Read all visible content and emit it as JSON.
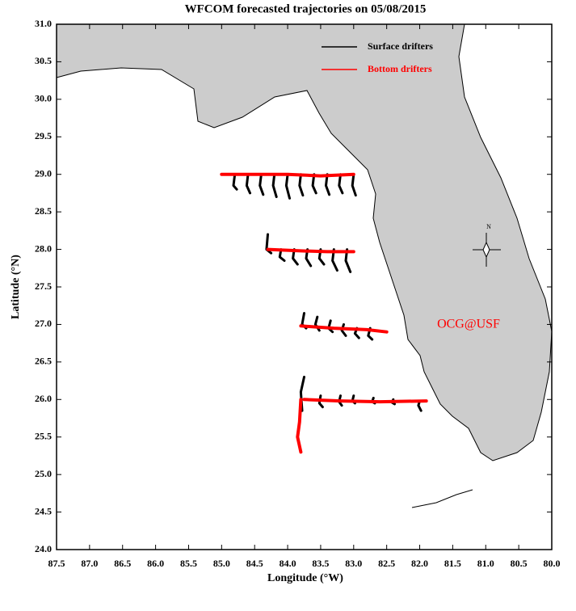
{
  "chart_data": {
    "type": "line",
    "title": "WFCOM forecasted trajectories on 05/08/2015",
    "x_label": "Longitude (°W)",
    "y_label": "Latitude (°N)",
    "xlim": [
      87.5,
      80.0
    ],
    "ylim": [
      24.0,
      31.0
    ],
    "xticks": [
      {
        "value": 87.5,
        "label": "87.5"
      },
      {
        "value": 87,
        "label": "87.0"
      },
      {
        "value": 86.5,
        "label": "86.5"
      },
      {
        "value": 86,
        "label": "86.0"
      },
      {
        "value": 85.5,
        "label": "85.5"
      },
      {
        "value": 85,
        "label": "85.0"
      },
      {
        "value": 84.5,
        "label": "84.5"
      },
      {
        "value": 84,
        "label": "84.0"
      },
      {
        "value": 83.5,
        "label": "83.5"
      },
      {
        "value": 83,
        "label": "83.0"
      },
      {
        "value": 82.5,
        "label": "82.5"
      },
      {
        "value": 82,
        "label": "82.0"
      },
      {
        "value": 81.5,
        "label": "81.5"
      },
      {
        "value": 81,
        "label": "81.0"
      },
      {
        "value": 80.5,
        "label": "80.5"
      },
      {
        "value": 80,
        "label": "80.0"
      }
    ],
    "yticks": [
      {
        "value": 24,
        "label": "24.0"
      },
      {
        "value": 24.5,
        "label": "24.5"
      },
      {
        "value": 25,
        "label": "25.0"
      },
      {
        "value": 25.5,
        "label": "25.5"
      },
      {
        "value": 26,
        "label": "26.0"
      },
      {
        "value": 26.5,
        "label": "26.5"
      },
      {
        "value": 27,
        "label": "27.0"
      },
      {
        "value": 27.5,
        "label": "27.5"
      },
      {
        "value": 28,
        "label": "28.0"
      },
      {
        "value": 28.5,
        "label": "28.5"
      },
      {
        "value": 29,
        "label": "29.0"
      },
      {
        "value": 29.5,
        "label": "29.5"
      },
      {
        "value": 30,
        "label": "30.0"
      },
      {
        "value": 30.5,
        "label": "30.5"
      },
      {
        "value": 31,
        "label": "31.0"
      }
    ],
    "legend": "top-right",
    "annotations": [
      "OCG@USF",
      "N"
    ],
    "series": [
      {
        "name": "Surface drifters",
        "color": "#000000",
        "width": 3,
        "x": [
          84.8,
          84.82,
          84.77,
          null,
          84.6,
          84.62,
          84.57,
          null,
          84.4,
          84.42,
          84.37,
          null,
          84.2,
          84.22,
          84.17,
          null,
          84.0,
          84.02,
          83.97,
          null,
          83.8,
          83.82,
          83.77,
          null,
          83.6,
          83.62,
          83.57,
          null,
          83.4,
          83.42,
          83.37,
          null,
          83.2,
          83.22,
          83.17,
          null,
          83.0,
          83.02,
          82.97,
          null,
          84.3,
          84.32,
          84.25,
          null,
          84.1,
          84.12,
          84.05,
          null,
          83.9,
          83.92,
          83.85,
          null,
          83.7,
          83.72,
          83.65,
          null,
          83.5,
          83.52,
          83.45,
          null,
          83.3,
          83.32,
          83.25,
          null,
          83.1,
          83.12,
          83.05,
          null,
          83.75,
          83.78,
          83.72,
          null,
          83.55,
          83.58,
          83.52,
          null,
          83.35,
          83.38,
          83.32,
          null,
          83.15,
          83.18,
          83.12,
          null,
          82.95,
          82.98,
          82.92,
          null,
          82.75,
          82.78,
          82.72,
          null,
          83.75,
          83.8,
          83.78,
          null,
          83.5,
          83.52,
          83.47,
          null,
          83.2,
          83.22,
          83.18,
          null,
          83.0,
          83.02,
          82.98,
          null,
          82.7,
          82.72,
          82.68,
          null,
          82.4,
          82.42,
          82.38,
          null,
          82.0,
          82.02,
          81.98
        ],
        "y": [
          29.0,
          28.85,
          28.8,
          null,
          29.0,
          28.85,
          28.75,
          null,
          29.0,
          28.85,
          28.73,
          null,
          29.0,
          28.85,
          28.7,
          null,
          29.0,
          28.85,
          28.68,
          null,
          29.0,
          28.85,
          28.72,
          null,
          29.0,
          28.85,
          28.75,
          null,
          29.0,
          28.85,
          28.73,
          null,
          29.0,
          28.85,
          28.75,
          null,
          29.0,
          28.85,
          28.72,
          null,
          28.2,
          28.0,
          27.95,
          null,
          28.0,
          27.9,
          27.85,
          null,
          28.0,
          27.88,
          27.8,
          null,
          28.0,
          27.88,
          27.78,
          null,
          28.0,
          27.88,
          27.8,
          null,
          28.0,
          27.85,
          27.72,
          null,
          28.0,
          27.85,
          27.7,
          null,
          27.15,
          27.0,
          26.95,
          null,
          27.1,
          27.0,
          26.92,
          null,
          27.05,
          26.95,
          26.9,
          null,
          27.0,
          26.92,
          26.85,
          null,
          26.95,
          26.88,
          26.82,
          null,
          26.95,
          26.85,
          26.8,
          null,
          26.3,
          26.1,
          25.85,
          null,
          26.05,
          25.95,
          25.9,
          null,
          26.05,
          25.97,
          25.92,
          null,
          26.05,
          25.98,
          25.95,
          null,
          26.02,
          25.97,
          25.95,
          null,
          26.0,
          25.96,
          25.94,
          null,
          25.98,
          25.92,
          25.85
        ]
      },
      {
        "name": "Bottom drifters",
        "color": "#ff0000",
        "width": 4,
        "x": [
          85.0,
          84.5,
          84.0,
          83.5,
          83.0,
          null,
          84.3,
          83.8,
          83.4,
          83.0,
          null,
          83.8,
          83.3,
          82.8,
          82.5,
          null,
          83.75,
          83.2,
          82.6,
          81.9,
          null,
          83.8,
          83.82,
          83.85,
          83.8
        ],
        "y": [
          29.0,
          29.0,
          29.0,
          28.98,
          29.0,
          null,
          28.0,
          27.98,
          27.97,
          27.97,
          null,
          26.98,
          26.95,
          26.93,
          26.9,
          null,
          26.0,
          25.98,
          25.97,
          25.98,
          null,
          26.0,
          25.7,
          25.5,
          25.3
        ]
      }
    ]
  }
}
